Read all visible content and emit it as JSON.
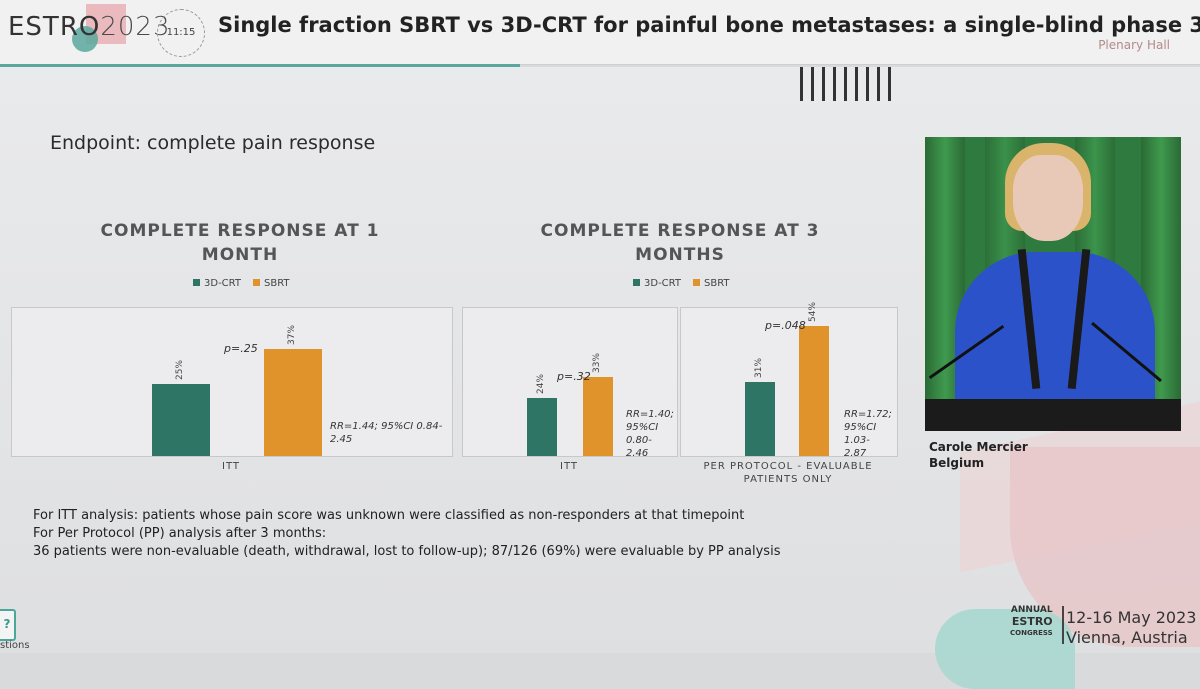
{
  "header": {
    "logo_main": "ESTRO",
    "logo_year": "2023",
    "time": "11:15",
    "session_title": "Single fraction SBRT vs 3D-CRT for painful bone metastases: a single-blind phase 3 ...",
    "room": "Plenary Hall"
  },
  "slide": {
    "endpoint": "Endpoint: complete pain response",
    "left_title_line1": "COMPLETE RESPONSE AT 1",
    "left_title_line2": "MONTH",
    "right_title_line1": "COMPLETE RESPONSE AT 3",
    "right_title_line2": "MONTHS",
    "legend_3dcrt": "3D-CRT",
    "legend_sbrt": "SBRT",
    "notes": [
      "For ITT analysis: patients whose pain score was unknown were classified as non-responders at that timepoint",
      "For Per Protocol (PP) analysis after 3 months:",
      "36 patients were non-evaluable (death, withdrawal, lost to follow-up); 87/126 (69%) were evaluable by PP analysis"
    ]
  },
  "colors": {
    "crt": "#2f7566",
    "sbrt": "#e0932a",
    "accent_teal": "#5aa89d",
    "accent_pink": "#e8a3a8"
  },
  "chart_data": [
    {
      "type": "bar",
      "title": "COMPLETE RESPONSE AT 1 MONTH",
      "categories": [
        "ITT"
      ],
      "series": [
        {
          "name": "3D-CRT",
          "values": [
            25
          ]
        },
        {
          "name": "SBRT",
          "values": [
            37
          ]
        }
      ],
      "data_labels": [
        "25%",
        "37%"
      ],
      "p_value": "p=.25",
      "rr_line1": "RR=1.44; 95%CI 0.84-",
      "rr_line2": "2.45",
      "ylim": [
        0,
        50
      ]
    },
    {
      "type": "bar",
      "title": "COMPLETE RESPONSE AT 3 MONTHS",
      "categories": [
        "ITT",
        "PER PROTOCOL - EVALUABLE PATIENTS ONLY"
      ],
      "category_lines": [
        [
          "ITT"
        ],
        [
          "PER PROTOCOL - EVALUABLE",
          "PATIENTS ONLY"
        ]
      ],
      "series": [
        {
          "name": "3D-CRT",
          "values": [
            24,
            31
          ]
        },
        {
          "name": "SBRT",
          "values": [
            33,
            54
          ]
        }
      ],
      "data_labels": [
        [
          "24%",
          "33%"
        ],
        [
          "31%",
          "54%"
        ]
      ],
      "p_values": [
        "p=.32",
        "p=.048"
      ],
      "rr": [
        [
          "RR=1.40;",
          "95%CI 0.80-",
          "2.46"
        ],
        [
          "RR=1.72;",
          "95%CI 1.03-",
          "2.87"
        ]
      ],
      "ylim": [
        0,
        60
      ]
    }
  ],
  "speaker": {
    "name": "Carole Mercier",
    "country": "Belgium"
  },
  "footer": {
    "congress_line1": "ANNUAL",
    "congress_line2": "ESTRO",
    "congress_line3": "CONGRESS",
    "dates": "12-16 May 2023",
    "location": "Vienna, Austria",
    "questions_icon": "?",
    "questions_text": "stions"
  }
}
